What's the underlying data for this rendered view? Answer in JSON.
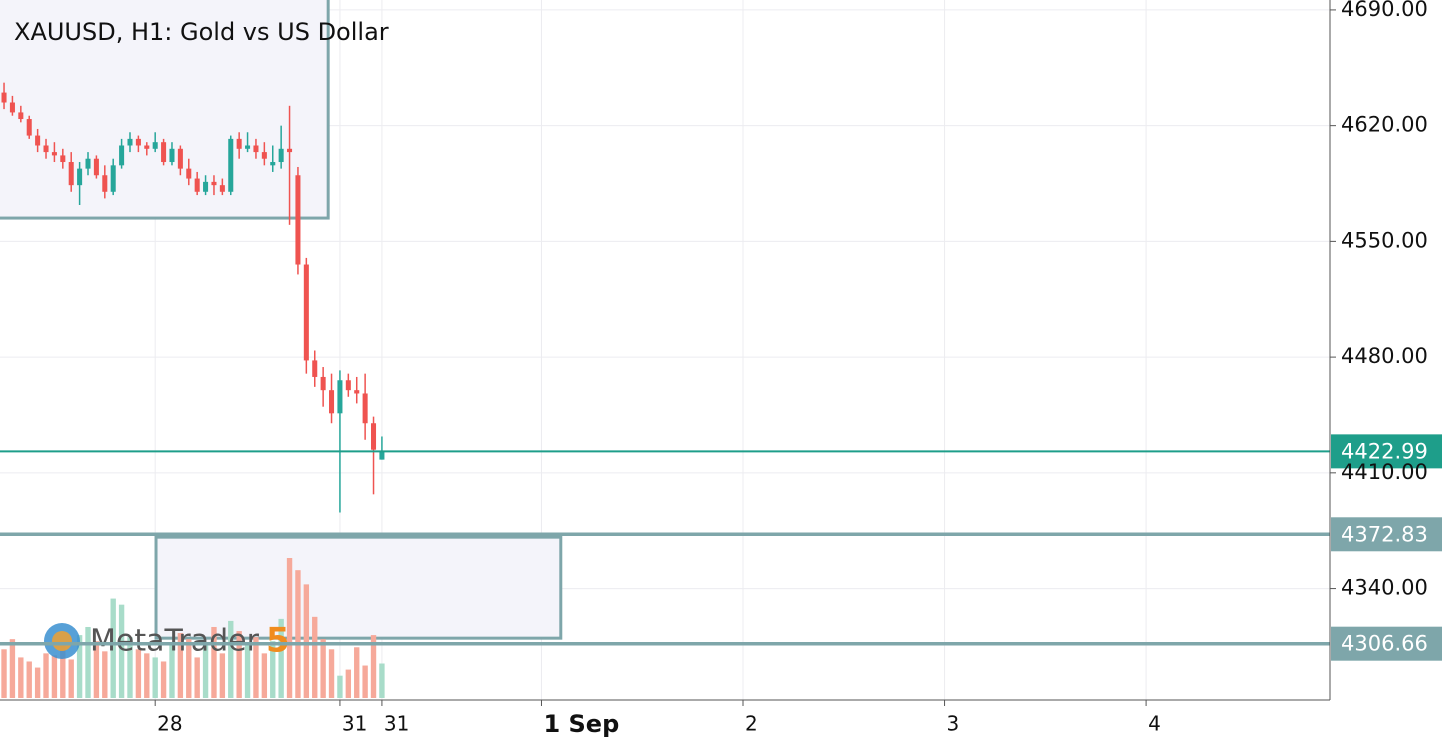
{
  "chart_data": {
    "type": "candlestick",
    "title": "XAUUSD, H1: Gold vs US Dollar",
    "up_color": "#26a69a",
    "down_color": "#ef5350",
    "volume_up_color": "#a8dcc9",
    "volume_down_color": "#f6a99a",
    "xlim": [
      -0.48,
      157.9
    ],
    "xticks": [
      {
        "value": 18,
        "label": "28"
      },
      {
        "value": 40,
        "label": "31"
      },
      {
        "value": 45,
        "label": "31"
      },
      {
        "value": 64,
        "label": "1 Sep"
      },
      {
        "value": 88,
        "label": "2"
      },
      {
        "value": 112,
        "label": "3"
      },
      {
        "value": 136,
        "label": "4"
      }
    ],
    "ylim": [
      4272.6,
      4696
    ],
    "yticks": [
      {
        "value": 4340,
        "label": "4340.00"
      },
      {
        "value": 4410,
        "label": "4410.00"
      },
      {
        "value": 4480,
        "label": "4480.00"
      },
      {
        "value": 4550,
        "label": "4550.00"
      },
      {
        "value": 4620,
        "label": "4620.00"
      },
      {
        "value": 4690,
        "label": "4690.00"
      }
    ],
    "grid": true,
    "open": [
      4640,
      4634,
      4628,
      4624,
      4614,
      4608,
      4604,
      4602,
      4598,
      4584,
      4594,
      4600,
      4590,
      4580,
      4596,
      4608,
      4612,
      4608,
      4606,
      4610,
      4598,
      4606,
      4594,
      4588,
      4580,
      4586,
      4584,
      4580,
      4612,
      4606,
      4608,
      4604,
      4596,
      4598,
      4606,
      4590,
      4536,
      4478,
      4468,
      4460,
      4446,
      4466,
      4460,
      4458,
      4440,
      4418
    ],
    "high": [
      4646,
      4638,
      4632,
      4626,
      4618,
      4612,
      4610,
      4606,
      4604,
      4598,
      4604,
      4602,
      4596,
      4600,
      4612,
      4616,
      4614,
      4610,
      4616,
      4612,
      4610,
      4608,
      4600,
      4592,
      4590,
      4590,
      4588,
      4614,
      4616,
      4616,
      4612,
      4610,
      4608,
      4620,
      4632,
      4595,
      4540,
      4484,
      4474,
      4470,
      4472,
      4470,
      4468,
      4470,
      4444,
      4432
    ],
    "low": [
      4630,
      4626,
      4622,
      4612,
      4604,
      4600,
      4598,
      4594,
      4580,
      4572,
      4590,
      4588,
      4576,
      4578,
      4594,
      4604,
      4604,
      4602,
      4604,
      4596,
      4596,
      4590,
      4584,
      4578,
      4578,
      4578,
      4578,
      4578,
      4600,
      4604,
      4600,
      4596,
      4592,
      4594,
      4560,
      4530,
      4470,
      4462,
      4450,
      4440,
      4386,
      4456,
      4452,
      4430,
      4397,
      4418
    ],
    "close": [
      4634,
      4628,
      4624,
      4614,
      4608,
      4604,
      4602,
      4598,
      4584,
      4594,
      4600,
      4590,
      4580,
      4596,
      4608,
      4612,
      4608,
      4606,
      4610,
      4598,
      4606,
      4594,
      4588,
      4580,
      4586,
      4584,
      4580,
      4612,
      4606,
      4608,
      4604,
      4600,
      4598,
      4606,
      4604,
      4536,
      4478,
      4468,
      4460,
      4446,
      4466,
      4460,
      4458,
      4440,
      4424,
      4422.99
    ],
    "volume": [
      48,
      58,
      40,
      36,
      30,
      44,
      42,
      52,
      38,
      62,
      70,
      56,
      46,
      98,
      92,
      60,
      48,
      44,
      40,
      36,
      52,
      64,
      58,
      40,
      52,
      70,
      44,
      76,
      66,
      52,
      60,
      44,
      56,
      78,
      138,
      126,
      112,
      80,
      58,
      48,
      22,
      28,
      50,
      32,
      62,
      34
    ],
    "price_lines": [
      {
        "value": 4422.99,
        "color": "#1e9e8a"
      },
      {
        "value": 4372.83,
        "color": "#7ea6aa"
      },
      {
        "value": 4306.66,
        "color": "#7ea6aa"
      }
    ],
    "zones": [
      {
        "x": [
          -2,
          38.6
        ],
        "y": [
          4564.1,
          4700
        ]
      },
      {
        "x": [
          18.1,
          66.3
        ],
        "y": [
          4310,
          4371.1
        ]
      }
    ],
    "logo": {
      "text": "MetaTrader",
      "number": "5"
    }
  }
}
